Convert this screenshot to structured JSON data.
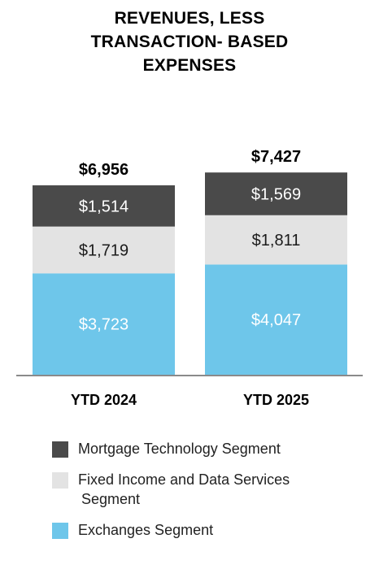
{
  "chart_data": {
    "type": "bar",
    "stacked": true,
    "title_lines": [
      "REVENUES, LESS",
      "TRANSACTION- BASED",
      "EXPENSES"
    ],
    "categories": [
      "YTD 2024",
      "YTD 2025"
    ],
    "totals": [
      6956,
      7427
    ],
    "total_labels": [
      "$6,956",
      "$7,427"
    ],
    "series": [
      {
        "name": "Exchanges Segment",
        "values": [
          3723,
          4047
        ],
        "labels": [
          "$3,723",
          "$4,047"
        ],
        "color": "#6ec6ea",
        "text_color": "#ffffff"
      },
      {
        "name": "Fixed Income and Data Services Segment",
        "values": [
          1719,
          1811
        ],
        "labels": [
          "$1,719",
          "$1,811"
        ],
        "color": "#e3e3e3",
        "text_color": "#1a1a1a"
      },
      {
        "name": "Mortgage Technology Segment",
        "values": [
          1514,
          1569
        ],
        "labels": [
          "$1,514",
          "$1,569"
        ],
        "color": "#4a4a4a",
        "text_color": "#ffffff"
      }
    ],
    "legend": {
      "placement": "bottom",
      "items": [
        {
          "label_lines": [
            "Mortgage Technology Segment"
          ],
          "color": "#4a4a4a"
        },
        {
          "label_lines": [
            "Fixed Income and Data Services",
            "Segment"
          ],
          "color": "#e3e3e3"
        },
        {
          "label_lines": [
            "Exchanges Segment"
          ],
          "color": "#6ec6ea"
        }
      ]
    },
    "ylim": [
      0,
      10000
    ],
    "grid": false
  }
}
